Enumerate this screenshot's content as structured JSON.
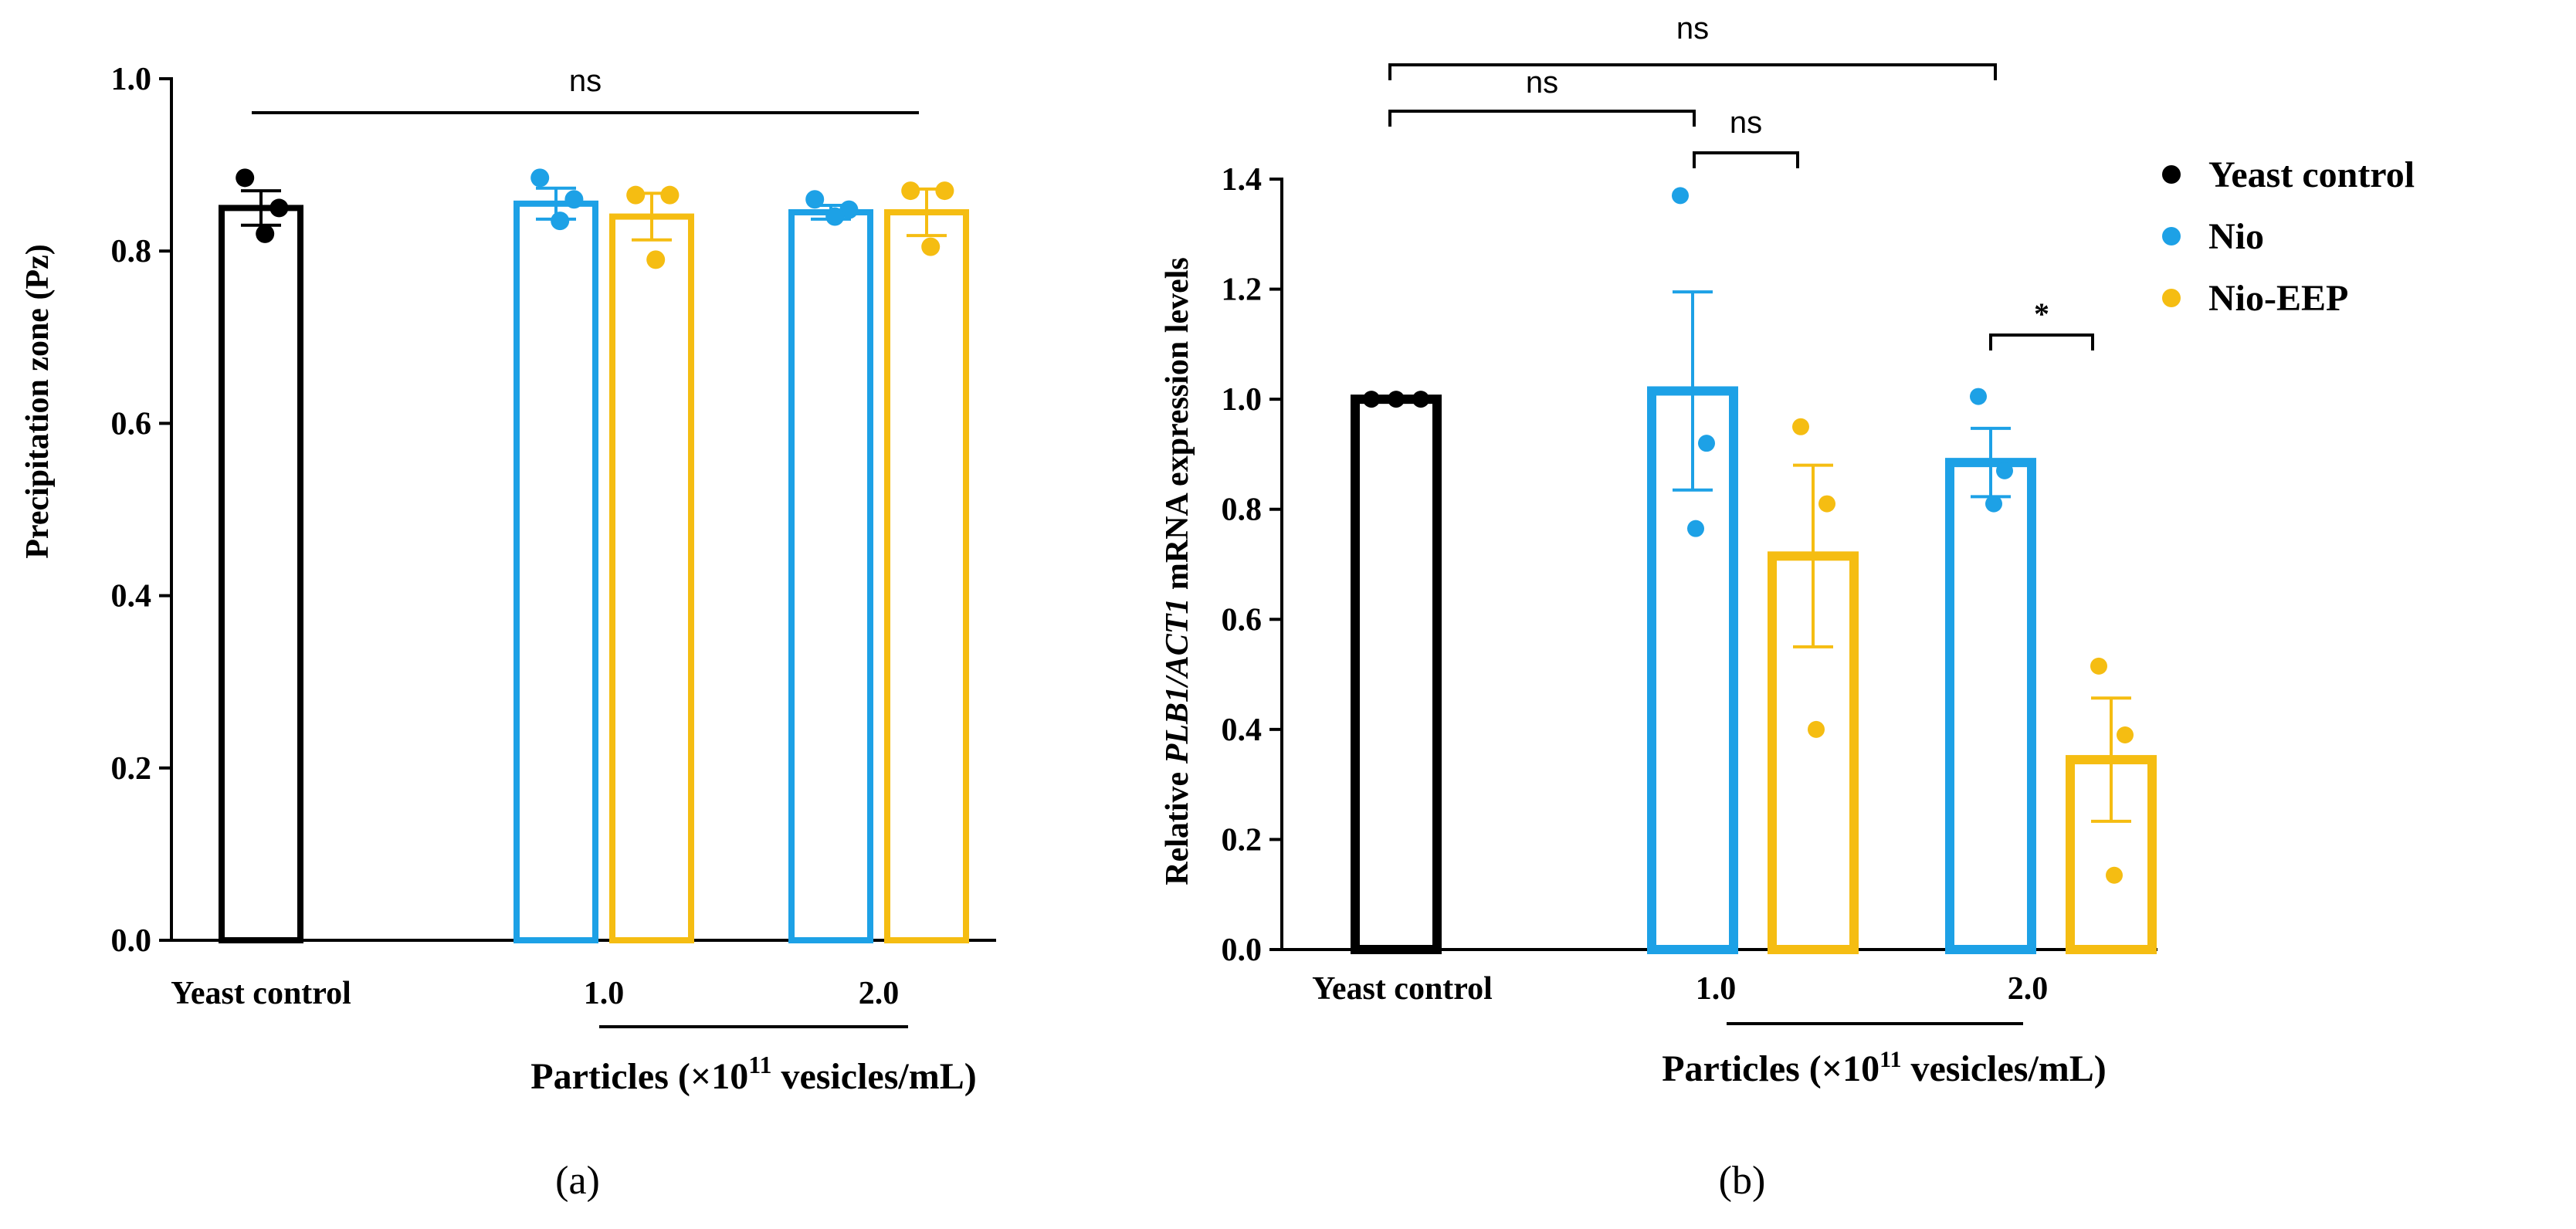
{
  "colors": {
    "yeast_control": "#000000",
    "nio": "#1da1e6",
    "nio_eep": "#f5bd12"
  },
  "legend": [
    {
      "name": "Yeast control",
      "color": "#000000"
    },
    {
      "name": "Nio",
      "color": "#1da1e6"
    },
    {
      "name": "Nio-EEP",
      "color": "#f5bd12"
    }
  ],
  "chart_data": [
    {
      "panel_label": "(a)",
      "type": "bar",
      "ylabel": "Precipitation zone (Pz)",
      "ylim": [
        0,
        1.0
      ],
      "yticks": [
        "0.0",
        "0.2",
        "0.4",
        "0.6",
        "0.8",
        "1.0"
      ],
      "categories": [
        "Yeast control",
        "1.0",
        "2.0"
      ],
      "xlabel_main": "Particles (×10",
      "xlabel_sup": "11",
      "xlabel_tail": " vesicles/mL)",
      "bars": [
        {
          "group": "Yeast control",
          "series": "Yeast control",
          "mean": 0.85,
          "sem": 0.02,
          "points": [
            0.885,
            0.85,
            0.82
          ]
        },
        {
          "group": "1.0",
          "series": "Nio",
          "mean": 0.855,
          "sem": 0.018,
          "points": [
            0.885,
            0.86,
            0.835
          ]
        },
        {
          "group": "1.0",
          "series": "Nio-EEP",
          "mean": 0.84,
          "sem": 0.027,
          "points": [
            0.865,
            0.865,
            0.79
          ]
        },
        {
          "group": "2.0",
          "series": "Nio",
          "mean": 0.845,
          "sem": 0.008,
          "points": [
            0.86,
            0.848,
            0.84
          ]
        },
        {
          "group": "2.0",
          "series": "Nio-EEP",
          "mean": 0.845,
          "sem": 0.027,
          "points": [
            0.87,
            0.87,
            0.805
          ]
        }
      ],
      "annotations": [
        {
          "label": "ns",
          "from": "Yeast control",
          "to": "2.0 Nio-EEP"
        }
      ]
    },
    {
      "panel_label": "(b)",
      "type": "bar",
      "ylabel_prefix": "Relative ",
      "ylabel_italic": "PLB1/ACT1",
      "ylabel_suffix": " mRNA expression levels",
      "ylim": [
        0,
        1.4
      ],
      "yticks": [
        "0.0",
        "0.2",
        "0.4",
        "0.6",
        "0.8",
        "1.0",
        "1.2",
        "1.4"
      ],
      "categories": [
        "Yeast control",
        "1.0",
        "2.0"
      ],
      "xlabel_main": "Particles (×10",
      "xlabel_sup": "11",
      "xlabel_tail": " vesicles/mL)",
      "bars": [
        {
          "group": "Yeast control",
          "series": "Yeast control",
          "mean": 1.0,
          "sem": 0.0,
          "points": [
            1.0,
            1.0,
            1.0
          ]
        },
        {
          "group": "1.0",
          "series": "Nio",
          "mean": 1.015,
          "sem": 0.18,
          "points": [
            1.37,
            0.92,
            0.765
          ]
        },
        {
          "group": "1.0",
          "series": "Nio-EEP",
          "mean": 0.715,
          "sem": 0.165,
          "points": [
            0.95,
            0.81,
            0.4
          ]
        },
        {
          "group": "2.0",
          "series": "Nio",
          "mean": 0.885,
          "sem": 0.062,
          "points": [
            1.005,
            0.87,
            0.81
          ]
        },
        {
          "group": "2.0",
          "series": "Nio-EEP",
          "mean": 0.345,
          "sem": 0.112,
          "points": [
            0.515,
            0.39,
            0.135
          ]
        }
      ],
      "annotations": [
        {
          "label": "ns",
          "from": "Yeast control",
          "to": "2.0 Nio"
        },
        {
          "label": "ns",
          "from": "Yeast control",
          "to": "1.0 Nio"
        },
        {
          "label": "ns",
          "from": "1.0 Nio",
          "to": "1.0 Nio-EEP"
        },
        {
          "label": "*",
          "from": "2.0 Nio",
          "to": "2.0 Nio-EEP"
        }
      ]
    }
  ]
}
